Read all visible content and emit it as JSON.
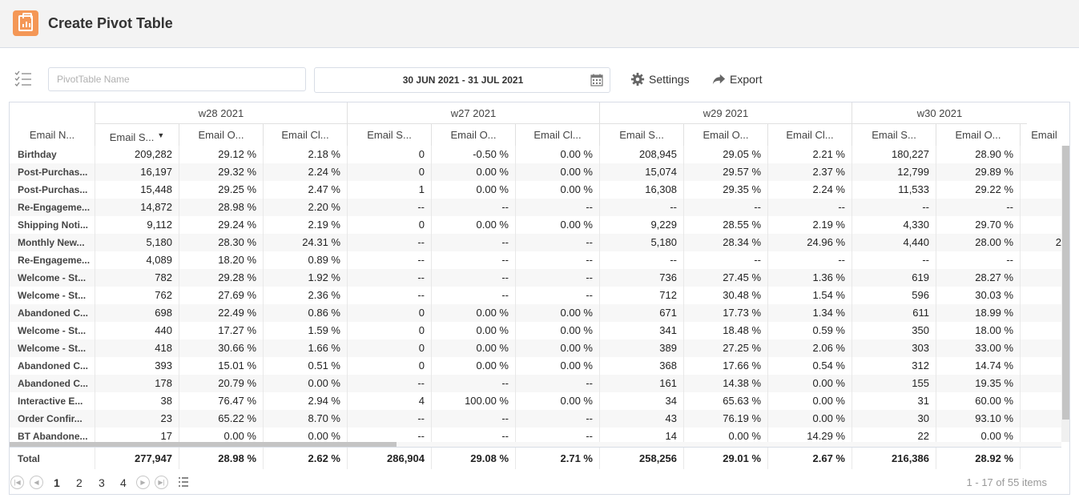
{
  "header": {
    "title": "Create Pivot Table",
    "icon": "clipboard-chart-icon",
    "accent": "#f49756"
  },
  "toolbar": {
    "name_placeholder": "PivotTable Name",
    "date_range": "30 JUN 2021 - 31 JUL 2021",
    "settings_label": "Settings",
    "export_label": "Export"
  },
  "grid": {
    "row_header_label": "Email N...",
    "groups": [
      "w28 2021",
      "w27 2021",
      "w29 2021",
      "w30 2021"
    ],
    "columns": [
      "Email S...",
      "Email O...",
      "Email Cl...",
      "Email S...",
      "Email O...",
      "Email Cl...",
      "Email S...",
      "Email O...",
      "Email Cl...",
      "Email S...",
      "Email O...",
      "Email"
    ],
    "sorted_column_index": 0,
    "rows": [
      {
        "name": "Birthday",
        "cells": [
          "209,282",
          "29.12 %",
          "2.18 %",
          "0",
          "-0.50 %",
          "0.00 %",
          "208,945",
          "29.05 %",
          "2.21 %",
          "180,227",
          "28.90 %",
          ""
        ]
      },
      {
        "name": "Post-Purchas...",
        "cells": [
          "16,197",
          "29.32 %",
          "2.24 %",
          "0",
          "0.00 %",
          "0.00 %",
          "15,074",
          "29.57 %",
          "2.37 %",
          "12,799",
          "29.89 %",
          ""
        ]
      },
      {
        "name": "Post-Purchas...",
        "cells": [
          "15,448",
          "29.25 %",
          "2.47 %",
          "1",
          "0.00 %",
          "0.00 %",
          "16,308",
          "29.35 %",
          "2.24 %",
          "11,533",
          "29.22 %",
          ""
        ]
      },
      {
        "name": "Re-Engageme...",
        "cells": [
          "14,872",
          "28.98 %",
          "2.20 %",
          "--",
          "--",
          "--",
          "--",
          "--",
          "--",
          "--",
          "--",
          ""
        ]
      },
      {
        "name": "Shipping Noti...",
        "cells": [
          "9,112",
          "29.24 %",
          "2.19 %",
          "0",
          "0.00 %",
          "0.00 %",
          "9,229",
          "28.55 %",
          "2.19 %",
          "4,330",
          "29.70 %",
          ""
        ]
      },
      {
        "name": "Monthly New...",
        "cells": [
          "5,180",
          "28.30 %",
          "24.31 %",
          "--",
          "--",
          "--",
          "5,180",
          "28.34 %",
          "24.96 %",
          "4,440",
          "28.00 %",
          "2"
        ]
      },
      {
        "name": "Re-Engageme...",
        "cells": [
          "4,089",
          "18.20 %",
          "0.89 %",
          "--",
          "--",
          "--",
          "--",
          "--",
          "--",
          "--",
          "--",
          ""
        ]
      },
      {
        "name": "Welcome - St...",
        "cells": [
          "782",
          "29.28 %",
          "1.92 %",
          "--",
          "--",
          "--",
          "736",
          "27.45 %",
          "1.36 %",
          "619",
          "28.27 %",
          ""
        ]
      },
      {
        "name": "Welcome - St...",
        "cells": [
          "762",
          "27.69 %",
          "2.36 %",
          "--",
          "--",
          "--",
          "712",
          "30.48 %",
          "1.54 %",
          "596",
          "30.03 %",
          ""
        ]
      },
      {
        "name": "Abandoned C...",
        "cells": [
          "698",
          "22.49 %",
          "0.86 %",
          "0",
          "0.00 %",
          "0.00 %",
          "671",
          "17.73 %",
          "1.34 %",
          "611",
          "18.99 %",
          ""
        ]
      },
      {
        "name": "Welcome - St...",
        "cells": [
          "440",
          "17.27 %",
          "1.59 %",
          "0",
          "0.00 %",
          "0.00 %",
          "341",
          "18.48 %",
          "0.59 %",
          "350",
          "18.00 %",
          ""
        ]
      },
      {
        "name": "Welcome - St...",
        "cells": [
          "418",
          "30.66 %",
          "1.66 %",
          "0",
          "0.00 %",
          "0.00 %",
          "389",
          "27.25 %",
          "2.06 %",
          "303",
          "33.00 %",
          ""
        ]
      },
      {
        "name": "Abandoned C...",
        "cells": [
          "393",
          "15.01 %",
          "0.51 %",
          "0",
          "0.00 %",
          "0.00 %",
          "368",
          "17.66 %",
          "0.54 %",
          "312",
          "14.74 %",
          ""
        ]
      },
      {
        "name": "Abandoned C...",
        "cells": [
          "178",
          "20.79 %",
          "0.00 %",
          "--",
          "--",
          "--",
          "161",
          "14.38 %",
          "0.00 %",
          "155",
          "19.35 %",
          ""
        ]
      },
      {
        "name": "Interactive E...",
        "cells": [
          "38",
          "76.47 %",
          "2.94 %",
          "4",
          "100.00 %",
          "0.00 %",
          "34",
          "65.63 %",
          "0.00 %",
          "31",
          "60.00 %",
          ""
        ]
      },
      {
        "name": "Order Confir...",
        "cells": [
          "23",
          "65.22 %",
          "8.70 %",
          "--",
          "--",
          "--",
          "43",
          "76.19 %",
          "0.00 %",
          "30",
          "93.10 %",
          ""
        ]
      },
      {
        "name": "BT Abandone...",
        "cells": [
          "17",
          "0.00 %",
          "0.00 %",
          "--",
          "--",
          "--",
          "14",
          "0.00 %",
          "14.29 %",
          "22",
          "0.00 %",
          ""
        ]
      }
    ],
    "total": {
      "label": "Total",
      "cells": [
        "277,947",
        "28.98 %",
        "2.62 %",
        "286,904",
        "29.08 %",
        "2.71 %",
        "258,256",
        "29.01 %",
        "2.67 %",
        "216,386",
        "28.92 %",
        ""
      ]
    }
  },
  "pager": {
    "pages": [
      "1",
      "2",
      "3",
      "4"
    ],
    "current_page": "1",
    "items_info": "1 - 17 of 55 items"
  }
}
